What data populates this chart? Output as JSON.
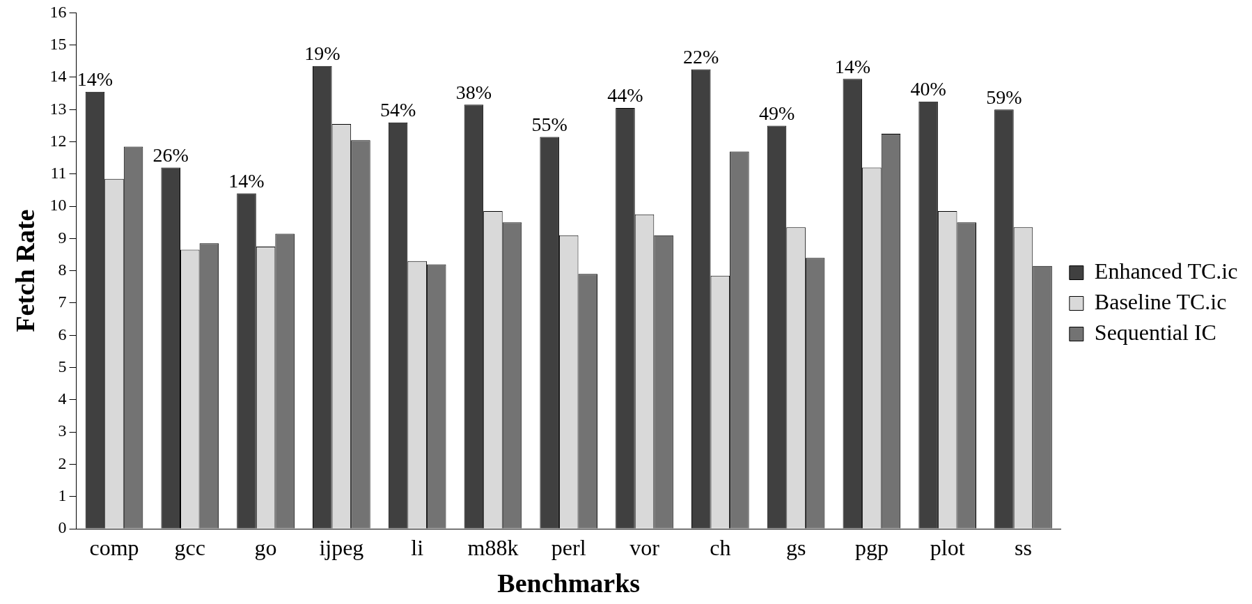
{
  "chart_data": {
    "type": "bar",
    "xlabel": "Benchmarks",
    "ylabel": "Fetch Rate",
    "categories": [
      "comp",
      "gcc",
      "go",
      "ijpeg",
      "li",
      "m88k",
      "perl",
      "vor",
      "ch",
      "gs",
      "pgp",
      "plot",
      "ss"
    ],
    "series": [
      {
        "name": "Enhanced TC.ic",
        "color": "#404040",
        "values": [
          13.55,
          11.2,
          10.4,
          14.35,
          12.6,
          13.15,
          12.15,
          13.05,
          14.25,
          12.5,
          13.95,
          13.25,
          13.0
        ]
      },
      {
        "name": "Baseline TC.ic",
        "color": "#d9d9d9",
        "values": [
          10.85,
          8.65,
          8.75,
          12.55,
          8.3,
          9.85,
          9.1,
          9.75,
          7.85,
          9.35,
          11.2,
          9.85,
          9.35
        ]
      },
      {
        "name": "Sequential IC",
        "color": "#737373",
        "values": [
          11.85,
          8.85,
          9.15,
          12.05,
          8.2,
          9.5,
          7.9,
          9.1,
          11.7,
          8.4,
          12.25,
          9.5,
          8.15
        ]
      }
    ],
    "ylim": [
      0,
      16
    ],
    "yticks": [
      0,
      1,
      2,
      3,
      4,
      5,
      6,
      7,
      8,
      9,
      10,
      11,
      12,
      13,
      14,
      15,
      16
    ],
    "legend": "right",
    "annotations": [
      "14%",
      "26%",
      "14%",
      "19%",
      "54%",
      "38%",
      "55%",
      "44%",
      "22%",
      "49%",
      "14%",
      "40%",
      "59%"
    ]
  }
}
